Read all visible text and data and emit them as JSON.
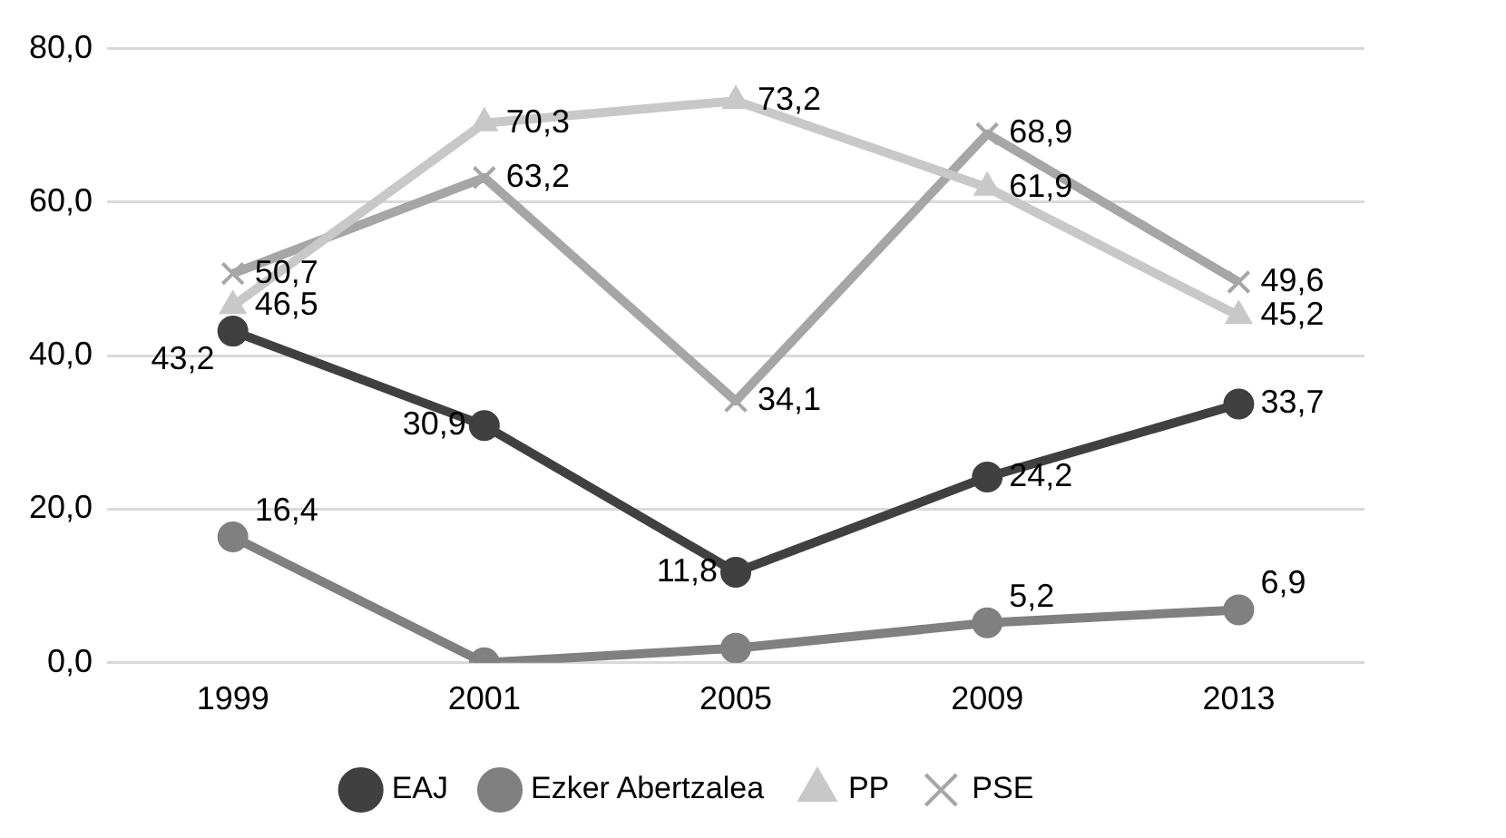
{
  "chart_data": {
    "type": "line",
    "categories": [
      "1999",
      "2001",
      "2005",
      "2009",
      "2013"
    ],
    "series": [
      {
        "name": "EAJ",
        "color": "#404040",
        "marker": "circle",
        "values": [
          43.2,
          30.9,
          11.8,
          24.2,
          33.7
        ],
        "value_labels": [
          "43,2",
          "30,9",
          "11,8",
          "24,2",
          "33,7"
        ]
      },
      {
        "name": "Ezker Abertzalea",
        "color": "#808080",
        "marker": "circle",
        "values": [
          16.4,
          0,
          1.9,
          5.2,
          6.9
        ],
        "value_labels": [
          "16,4",
          null,
          null,
          "5,2",
          "6,9"
        ]
      },
      {
        "name": "PP",
        "color": "#c8c8c8",
        "marker": "triangle",
        "values": [
          46.5,
          70.3,
          73.2,
          61.9,
          45.2
        ],
        "value_labels": [
          "46,5",
          "70,3",
          "73,2",
          "61,9",
          "45,2"
        ]
      },
      {
        "name": "PSE",
        "color": "#a6a6a6",
        "marker": "cross",
        "values": [
          50.7,
          63.2,
          34.1,
          68.9,
          49.6
        ],
        "value_labels": [
          "50,7",
          "63,2",
          "34,1",
          "68,9",
          "49,6"
        ]
      }
    ],
    "ylim": [
      0,
      80
    ],
    "yticks": [
      {
        "value": 0,
        "label": "0,0"
      },
      {
        "value": 20,
        "label": "20,0"
      },
      {
        "value": 40,
        "label": "40,0"
      },
      {
        "value": 60,
        "label": "60,0"
      },
      {
        "value": 80,
        "label": "80,0"
      }
    ],
    "grid": "y",
    "legend": "bottom"
  }
}
